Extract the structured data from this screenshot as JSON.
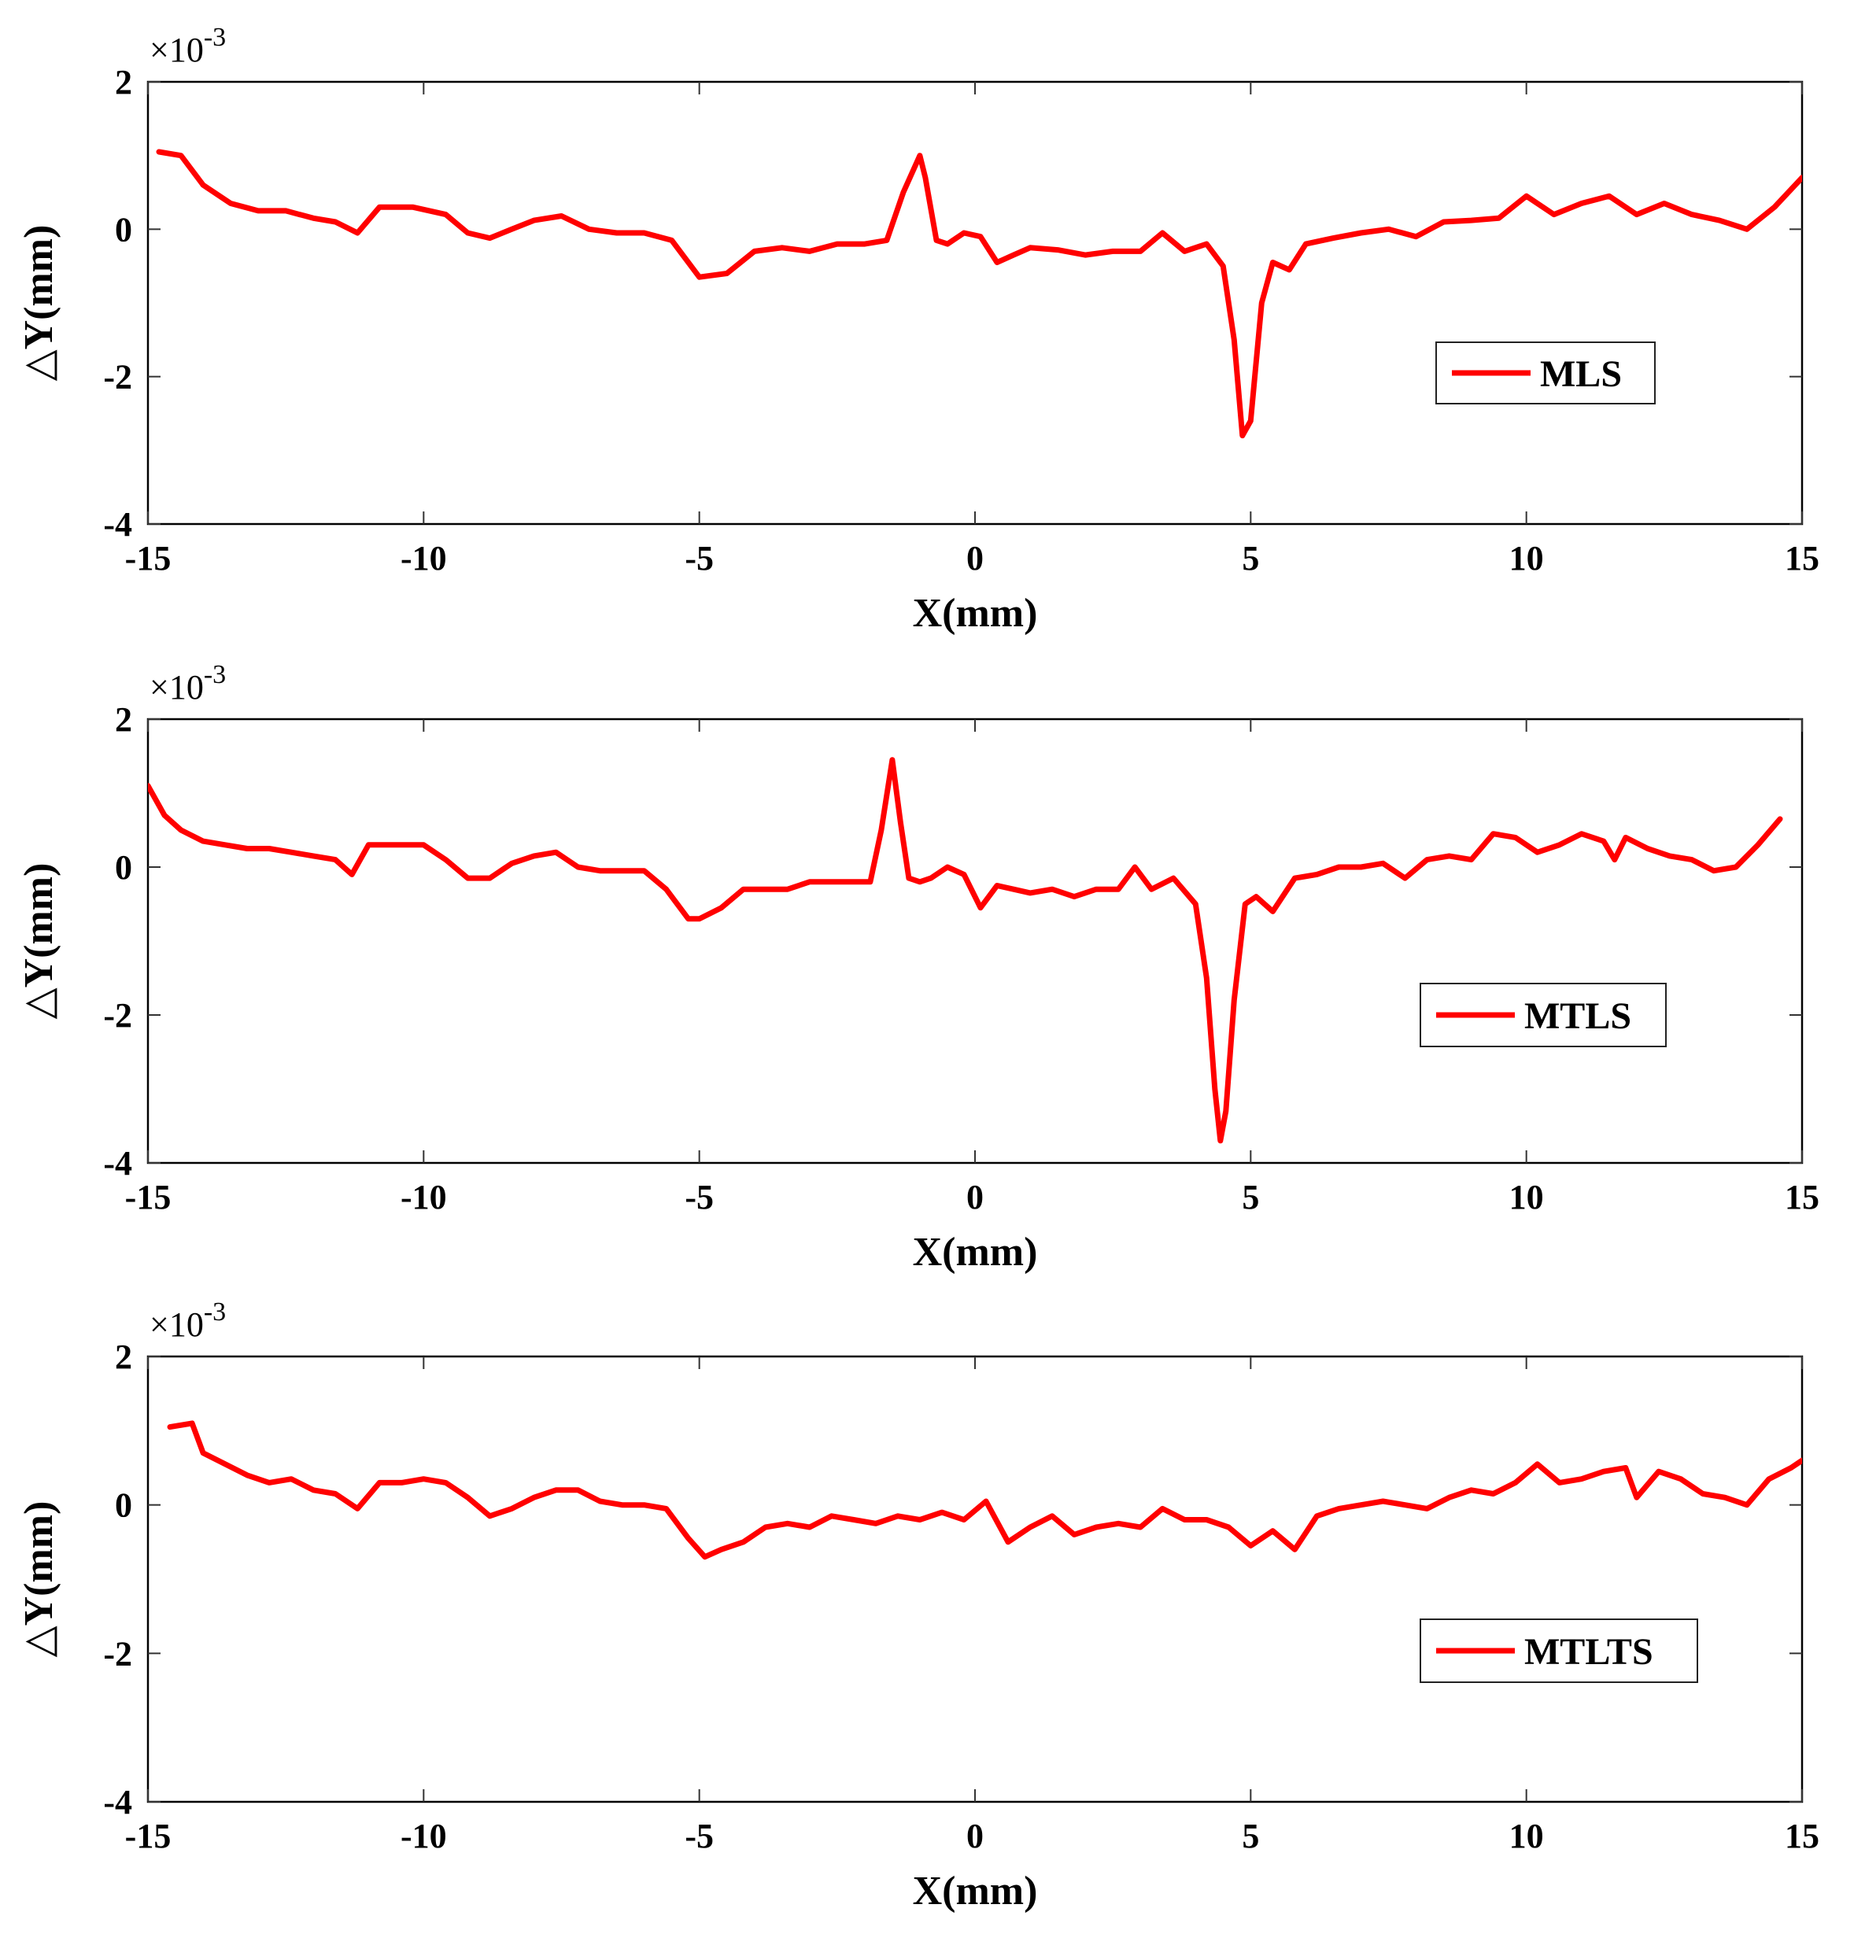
{
  "colors": {
    "series": "#ff0000",
    "axes": "#000000",
    "tick": "#333333",
    "background": "#ffffff"
  },
  "chart_data": [
    {
      "type": "line",
      "xlabel": "X(mm)",
      "ylabel": "△Y(mm)",
      "exponent_label": "×10",
      "exponent_power": "-3",
      "xlim": [
        -15,
        15
      ],
      "ylim": [
        -4,
        2
      ],
      "xticks": [
        -15,
        -10,
        -5,
        0,
        5,
        10,
        15
      ],
      "yticks": [
        -4,
        -2,
        0,
        2
      ],
      "xtick_labels": [
        "-15",
        "-10",
        "-5",
        "0",
        "5",
        "10",
        "15"
      ],
      "ytick_labels": [
        "-4",
        "-2",
        "0",
        "2"
      ],
      "grid": false,
      "legend_position": "middle-right",
      "series": [
        {
          "name": "MLS",
          "color": "#ff0000",
          "x": [
            -14.8,
            -14.4,
            -14.0,
            -13.5,
            -13.0,
            -12.5,
            -12.0,
            -11.6,
            -11.2,
            -10.8,
            -10.2,
            -9.6,
            -9.2,
            -8.8,
            -8.4,
            -8.0,
            -7.5,
            -7.0,
            -6.5,
            -6.0,
            -5.5,
            -5.0,
            -4.5,
            -4.0,
            -3.5,
            -3.0,
            -2.5,
            -2.0,
            -1.6,
            -1.3,
            -1.0,
            -0.9,
            -0.7,
            -0.5,
            -0.2,
            0.1,
            0.4,
            0.7,
            1.0,
            1.5,
            2.0,
            2.5,
            3.0,
            3.4,
            3.8,
            4.2,
            4.5,
            4.7,
            4.85,
            5.0,
            5.2,
            5.4,
            5.7,
            6.0,
            6.5,
            7.0,
            7.5,
            8.0,
            8.5,
            9.0,
            9.5,
            10.0,
            10.5,
            11.0,
            11.5,
            12.0,
            12.5,
            13.0,
            13.5,
            14.0,
            14.5,
            15.0
          ],
          "values": [
            1.05,
            1.0,
            0.6,
            0.35,
            0.25,
            0.25,
            0.15,
            0.1,
            -0.05,
            0.3,
            0.3,
            0.2,
            -0.05,
            -0.12,
            0.0,
            0.12,
            0.18,
            0.0,
            -0.05,
            -0.05,
            -0.15,
            -0.65,
            -0.6,
            -0.3,
            -0.25,
            -0.3,
            -0.2,
            -0.2,
            -0.15,
            0.5,
            1.0,
            0.7,
            -0.15,
            -0.2,
            -0.05,
            -0.1,
            -0.45,
            -0.35,
            -0.25,
            -0.28,
            -0.35,
            -0.3,
            -0.3,
            -0.05,
            -0.3,
            -0.2,
            -0.5,
            -1.5,
            -2.8,
            -2.6,
            -1.0,
            -0.45,
            -0.55,
            -0.2,
            -0.12,
            -0.05,
            0.0,
            -0.1,
            0.1,
            0.12,
            0.15,
            0.45,
            0.2,
            0.35,
            0.45,
            0.2,
            0.35,
            0.2,
            0.12,
            0.0,
            0.3,
            0.7
          ]
        }
      ]
    },
    {
      "type": "line",
      "xlabel": "X(mm)",
      "ylabel": "△Y(mm)",
      "exponent_label": "×10",
      "exponent_power": "-3",
      "xlim": [
        -15,
        15
      ],
      "ylim": [
        -4,
        2
      ],
      "xticks": [
        -15,
        -10,
        -5,
        0,
        5,
        10,
        15
      ],
      "yticks": [
        -4,
        -2,
        0,
        2
      ],
      "xtick_labels": [
        "-15",
        "-10",
        "-5",
        "0",
        "5",
        "10",
        "15"
      ],
      "ytick_labels": [
        "-4",
        "-2",
        "0",
        "2"
      ],
      "grid": false,
      "legend_position": "middle-right",
      "series": [
        {
          "name": "MTLS",
          "color": "#ff0000",
          "x": [
            -15.0,
            -14.7,
            -14.4,
            -14.0,
            -13.6,
            -13.2,
            -12.8,
            -12.4,
            -12.0,
            -11.6,
            -11.3,
            -11.0,
            -10.5,
            -10.0,
            -9.6,
            -9.2,
            -8.8,
            -8.4,
            -8.0,
            -7.6,
            -7.2,
            -6.8,
            -6.4,
            -6.0,
            -5.6,
            -5.2,
            -5.0,
            -4.6,
            -4.2,
            -3.8,
            -3.4,
            -3.0,
            -2.6,
            -2.2,
            -1.9,
            -1.7,
            -1.5,
            -1.35,
            -1.2,
            -1.0,
            -0.8,
            -0.5,
            -0.2,
            0.1,
            0.4,
            0.7,
            1.0,
            1.4,
            1.8,
            2.2,
            2.6,
            2.9,
            3.2,
            3.6,
            4.0,
            4.2,
            4.35,
            4.45,
            4.55,
            4.7,
            4.9,
            5.1,
            5.4,
            5.8,
            6.2,
            6.6,
            7.0,
            7.4,
            7.8,
            8.2,
            8.6,
            9.0,
            9.4,
            9.8,
            10.2,
            10.6,
            11.0,
            11.4,
            11.6,
            11.8,
            12.2,
            12.6,
            13.0,
            13.4,
            13.8,
            14.2,
            14.6
          ],
          "values": [
            1.1,
            0.7,
            0.5,
            0.35,
            0.3,
            0.25,
            0.25,
            0.2,
            0.15,
            0.1,
            -0.1,
            0.3,
            0.3,
            0.3,
            0.1,
            -0.15,
            -0.15,
            0.05,
            0.15,
            0.2,
            0.0,
            -0.05,
            -0.05,
            -0.05,
            -0.3,
            -0.7,
            -0.7,
            -0.55,
            -0.3,
            -0.3,
            -0.3,
            -0.2,
            -0.2,
            -0.2,
            -0.2,
            0.5,
            1.45,
            0.6,
            -0.15,
            -0.2,
            -0.15,
            0.0,
            -0.1,
            -0.55,
            -0.25,
            -0.3,
            -0.35,
            -0.3,
            -0.4,
            -0.3,
            -0.3,
            0.0,
            -0.3,
            -0.15,
            -0.5,
            -1.5,
            -3.0,
            -3.7,
            -3.3,
            -1.8,
            -0.5,
            -0.4,
            -0.6,
            -0.15,
            -0.1,
            0.0,
            0.0,
            0.05,
            -0.15,
            0.1,
            0.15,
            0.1,
            0.45,
            0.4,
            0.2,
            0.3,
            0.45,
            0.35,
            0.1,
            0.4,
            0.25,
            0.15,
            0.1,
            -0.05,
            0.0,
            0.3,
            0.65
          ]
        }
      ]
    },
    {
      "type": "line",
      "xlabel": "X(mm)",
      "ylabel": "△Y(mm)",
      "exponent_label": "×10",
      "exponent_power": "-3",
      "xlim": [
        -15,
        15
      ],
      "ylim": [
        -4,
        2
      ],
      "xticks": [
        -15,
        -10,
        -5,
        0,
        5,
        10,
        15
      ],
      "yticks": [
        -4,
        -2,
        0,
        2
      ],
      "xtick_labels": [
        "-15",
        "-10",
        "-5",
        "0",
        "5",
        "10",
        "15"
      ],
      "ytick_labels": [
        "-4",
        "-2",
        "0",
        "2"
      ],
      "grid": false,
      "legend_position": "middle-right",
      "series": [
        {
          "name": "MTLTS",
          "color": "#ff0000",
          "x": [
            -14.6,
            -14.2,
            -14.0,
            -13.6,
            -13.2,
            -12.8,
            -12.4,
            -12.0,
            -11.6,
            -11.2,
            -10.8,
            -10.4,
            -10.0,
            -9.6,
            -9.2,
            -8.8,
            -8.4,
            -8.0,
            -7.6,
            -7.2,
            -6.8,
            -6.4,
            -6.0,
            -5.6,
            -5.2,
            -4.9,
            -4.6,
            -4.2,
            -3.8,
            -3.4,
            -3.0,
            -2.6,
            -2.2,
            -1.8,
            -1.4,
            -1.0,
            -0.6,
            -0.2,
            0.2,
            0.6,
            1.0,
            1.4,
            1.8,
            2.2,
            2.6,
            3.0,
            3.4,
            3.8,
            4.2,
            4.6,
            5.0,
            5.4,
            5.8,
            6.2,
            6.6,
            7.0,
            7.4,
            7.8,
            8.2,
            8.6,
            9.0,
            9.4,
            9.8,
            10.2,
            10.6,
            11.0,
            11.4,
            11.8,
            12.0,
            12.4,
            12.8,
            13.2,
            13.6,
            14.0,
            14.4,
            14.8,
            15.0
          ],
          "values": [
            1.05,
            1.1,
            0.7,
            0.55,
            0.4,
            0.3,
            0.35,
            0.2,
            0.15,
            -0.05,
            0.3,
            0.3,
            0.35,
            0.3,
            0.1,
            -0.15,
            -0.05,
            0.1,
            0.2,
            0.2,
            0.05,
            0.0,
            0.0,
            -0.05,
            -0.45,
            -0.7,
            -0.6,
            -0.5,
            -0.3,
            -0.25,
            -0.3,
            -0.15,
            -0.2,
            -0.25,
            -0.15,
            -0.2,
            -0.1,
            -0.2,
            0.05,
            -0.5,
            -0.3,
            -0.15,
            -0.4,
            -0.3,
            -0.25,
            -0.3,
            -0.05,
            -0.2,
            -0.2,
            -0.3,
            -0.55,
            -0.35,
            -0.6,
            -0.15,
            -0.05,
            0.0,
            0.05,
            0.0,
            -0.05,
            0.1,
            0.2,
            0.15,
            0.3,
            0.55,
            0.3,
            0.35,
            0.45,
            0.5,
            0.1,
            0.45,
            0.35,
            0.15,
            0.1,
            0.0,
            0.35,
            0.5,
            0.6
          ]
        }
      ]
    }
  ]
}
